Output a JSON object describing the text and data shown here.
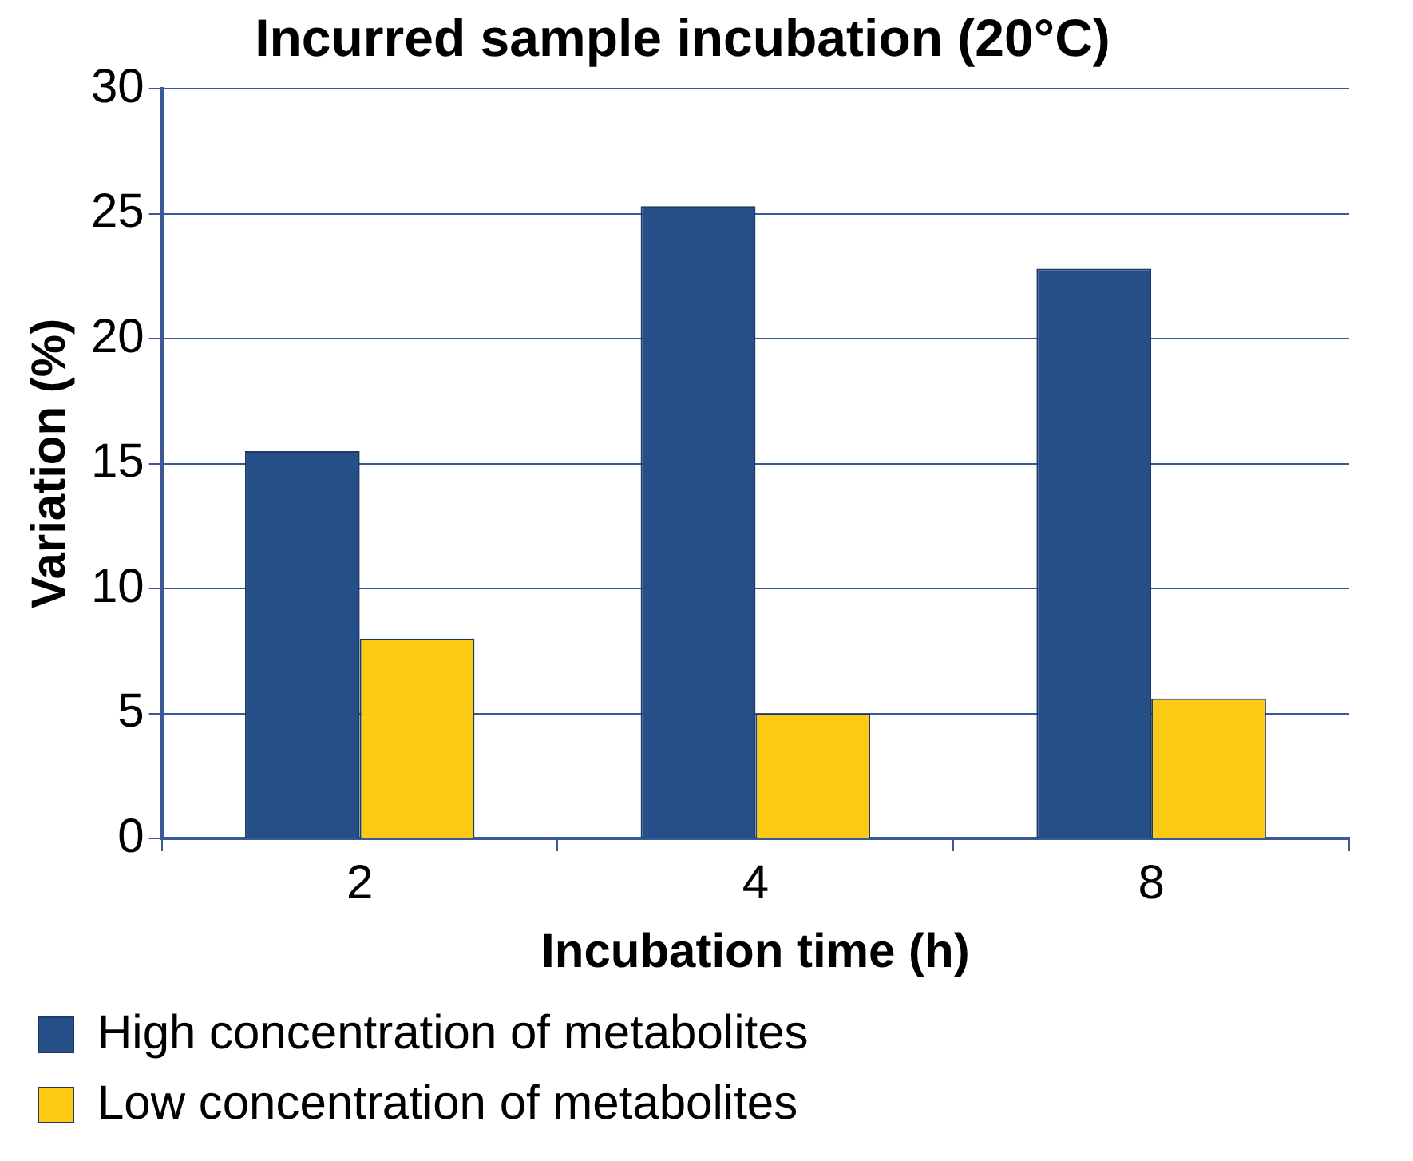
{
  "chart_data": {
    "type": "bar",
    "title": "Incurred sample incubation (20°C)",
    "xlabel": "Incubation time (h)",
    "ylabel": "Variation (%)",
    "categories": [
      "2",
      "4",
      "8"
    ],
    "series": [
      {
        "name": "High concentration of metabolites",
        "color": "#264f88",
        "values": [
          15.5,
          25.3,
          22.8
        ]
      },
      {
        "name": "Low concentration of metabolites",
        "color": "#fcc914",
        "values": [
          8,
          5,
          5.6
        ]
      }
    ],
    "ylim": [
      0,
      30
    ],
    "yticks": [
      0,
      5,
      10,
      15,
      20,
      25,
      30
    ],
    "grid": "y",
    "legend": "bottom"
  }
}
